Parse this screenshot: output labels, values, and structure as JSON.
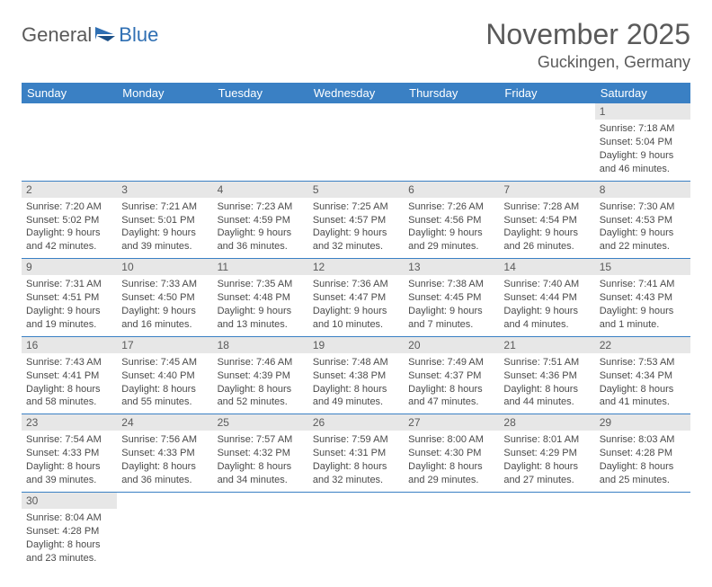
{
  "logo": {
    "general": "General",
    "blue": "Blue"
  },
  "title": "November 2025",
  "location": "Guckingen, Germany",
  "colors": {
    "header_bg": "#3a80c4",
    "header_text": "#ffffff",
    "daynum_bg": "#e7e7e7",
    "body_text": "#4a4a4a",
    "title_text": "#5a5a5a",
    "row_border": "#3a80c4",
    "logo_blue": "#2f6fb3"
  },
  "weekdays": [
    "Sunday",
    "Monday",
    "Tuesday",
    "Wednesday",
    "Thursday",
    "Friday",
    "Saturday"
  ],
  "weeks": [
    [
      null,
      null,
      null,
      null,
      null,
      null,
      {
        "n": "1",
        "sr": "7:18 AM",
        "ss": "5:04 PM",
        "dl": "9 hours and 46 minutes."
      }
    ],
    [
      {
        "n": "2",
        "sr": "7:20 AM",
        "ss": "5:02 PM",
        "dl": "9 hours and 42 minutes."
      },
      {
        "n": "3",
        "sr": "7:21 AM",
        "ss": "5:01 PM",
        "dl": "9 hours and 39 minutes."
      },
      {
        "n": "4",
        "sr": "7:23 AM",
        "ss": "4:59 PM",
        "dl": "9 hours and 36 minutes."
      },
      {
        "n": "5",
        "sr": "7:25 AM",
        "ss": "4:57 PM",
        "dl": "9 hours and 32 minutes."
      },
      {
        "n": "6",
        "sr": "7:26 AM",
        "ss": "4:56 PM",
        "dl": "9 hours and 29 minutes."
      },
      {
        "n": "7",
        "sr": "7:28 AM",
        "ss": "4:54 PM",
        "dl": "9 hours and 26 minutes."
      },
      {
        "n": "8",
        "sr": "7:30 AM",
        "ss": "4:53 PM",
        "dl": "9 hours and 22 minutes."
      }
    ],
    [
      {
        "n": "9",
        "sr": "7:31 AM",
        "ss": "4:51 PM",
        "dl": "9 hours and 19 minutes."
      },
      {
        "n": "10",
        "sr": "7:33 AM",
        "ss": "4:50 PM",
        "dl": "9 hours and 16 minutes."
      },
      {
        "n": "11",
        "sr": "7:35 AM",
        "ss": "4:48 PM",
        "dl": "9 hours and 13 minutes."
      },
      {
        "n": "12",
        "sr": "7:36 AM",
        "ss": "4:47 PM",
        "dl": "9 hours and 10 minutes."
      },
      {
        "n": "13",
        "sr": "7:38 AM",
        "ss": "4:45 PM",
        "dl": "9 hours and 7 minutes."
      },
      {
        "n": "14",
        "sr": "7:40 AM",
        "ss": "4:44 PM",
        "dl": "9 hours and 4 minutes."
      },
      {
        "n": "15",
        "sr": "7:41 AM",
        "ss": "4:43 PM",
        "dl": "9 hours and 1 minute."
      }
    ],
    [
      {
        "n": "16",
        "sr": "7:43 AM",
        "ss": "4:41 PM",
        "dl": "8 hours and 58 minutes."
      },
      {
        "n": "17",
        "sr": "7:45 AM",
        "ss": "4:40 PM",
        "dl": "8 hours and 55 minutes."
      },
      {
        "n": "18",
        "sr": "7:46 AM",
        "ss": "4:39 PM",
        "dl": "8 hours and 52 minutes."
      },
      {
        "n": "19",
        "sr": "7:48 AM",
        "ss": "4:38 PM",
        "dl": "8 hours and 49 minutes."
      },
      {
        "n": "20",
        "sr": "7:49 AM",
        "ss": "4:37 PM",
        "dl": "8 hours and 47 minutes."
      },
      {
        "n": "21",
        "sr": "7:51 AM",
        "ss": "4:36 PM",
        "dl": "8 hours and 44 minutes."
      },
      {
        "n": "22",
        "sr": "7:53 AM",
        "ss": "4:34 PM",
        "dl": "8 hours and 41 minutes."
      }
    ],
    [
      {
        "n": "23",
        "sr": "7:54 AM",
        "ss": "4:33 PM",
        "dl": "8 hours and 39 minutes."
      },
      {
        "n": "24",
        "sr": "7:56 AM",
        "ss": "4:33 PM",
        "dl": "8 hours and 36 minutes."
      },
      {
        "n": "25",
        "sr": "7:57 AM",
        "ss": "4:32 PM",
        "dl": "8 hours and 34 minutes."
      },
      {
        "n": "26",
        "sr": "7:59 AM",
        "ss": "4:31 PM",
        "dl": "8 hours and 32 minutes."
      },
      {
        "n": "27",
        "sr": "8:00 AM",
        "ss": "4:30 PM",
        "dl": "8 hours and 29 minutes."
      },
      {
        "n": "28",
        "sr": "8:01 AM",
        "ss": "4:29 PM",
        "dl": "8 hours and 27 minutes."
      },
      {
        "n": "29",
        "sr": "8:03 AM",
        "ss": "4:28 PM",
        "dl": "8 hours and 25 minutes."
      }
    ],
    [
      {
        "n": "30",
        "sr": "8:04 AM",
        "ss": "4:28 PM",
        "dl": "8 hours and 23 minutes."
      },
      null,
      null,
      null,
      null,
      null,
      null
    ]
  ],
  "labels": {
    "sunrise": "Sunrise:",
    "sunset": "Sunset:",
    "daylight": "Daylight:"
  }
}
